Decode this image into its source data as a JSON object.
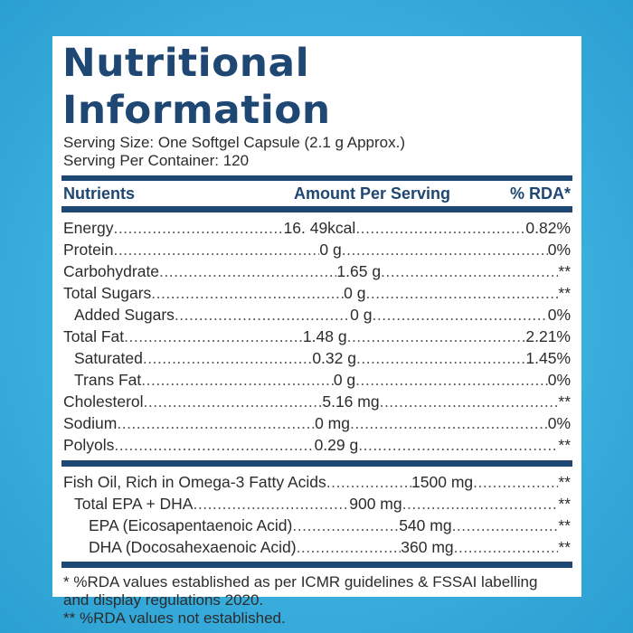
{
  "title": "Nutritional Information",
  "serving_size": "Serving Size: One Softgel Capsule (2.1 g Approx.)",
  "serving_per_container": "Serving Per Container: 120",
  "header": {
    "nutrients": "Nutrients",
    "amount": "Amount Per Serving",
    "rda": "% RDA*"
  },
  "nutrients": [
    {
      "name": "Energy",
      "amount": "16. 49kcal",
      "rda": "0.82%"
    },
    {
      "name": "Protein ",
      "amount": "0 g",
      "rda": "0%"
    },
    {
      "name": "Carbohydrate",
      "amount": "1.65 g",
      "rda": "**"
    },
    {
      "name": "Total Sugars",
      "amount": "0 g",
      "rda": "**"
    },
    {
      "name": "Added Sugars",
      "amount": "0 g",
      "rda": "0%"
    },
    {
      "name": "Total Fat",
      "amount": "1.48 g",
      "rda": "2.21%"
    },
    {
      "name": "Saturated",
      "amount": "0.32 g",
      "rda": "1.45%"
    },
    {
      "name": "Trans Fat",
      "amount": "0 g",
      "rda": "0%"
    },
    {
      "name": "Cholesterol ",
      "amount": "5.16 mg",
      "rda": "**"
    },
    {
      "name": "Sodium ",
      "amount": "0 mg",
      "rda": "0%"
    },
    {
      "name": "Polyols ",
      "amount": "0.29 g",
      "rda": "**"
    }
  ],
  "fish_oil": [
    {
      "name": "Fish Oil, Rich in Omega-3 Fatty Acids",
      "amount": "1500 mg",
      "rda": "**"
    },
    {
      "name": "Total EPA + DHA ",
      "amount": "900 mg",
      "rda": "**"
    },
    {
      "name": "EPA (Eicosapentaenoic Acid)",
      "amount": "540 mg",
      "rda": "**"
    },
    {
      "name": "DHA (Docosahexaenoic Acid)",
      "amount": "360 mg",
      "rda": "**"
    }
  ],
  "footnotes": {
    "line1": "* %RDA values established as per ICMR guidelines & FSSAI labelling",
    "line2": "and display regulations 2020.",
    "line3": "** %RDA values not established."
  }
}
